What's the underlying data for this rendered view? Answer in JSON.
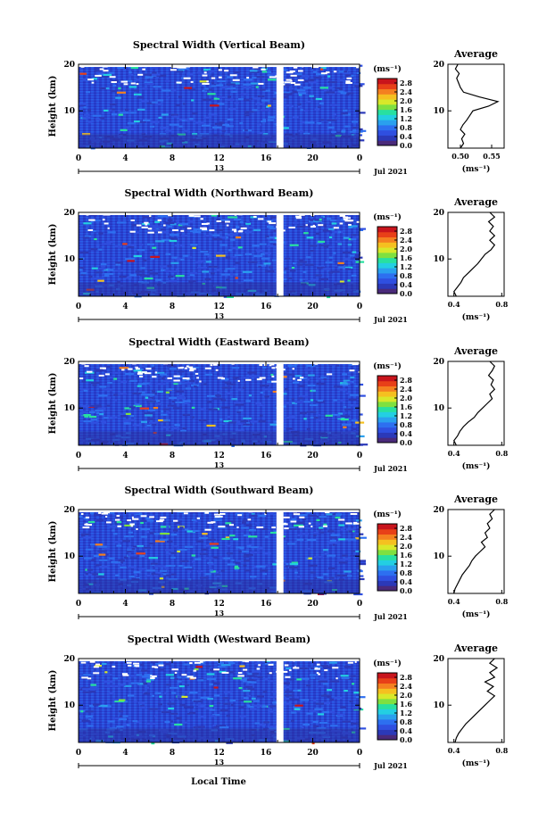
{
  "figure": {
    "xlabel": "Local Time",
    "date_label": "Jul 2021",
    "day_label": "13",
    "unit_label": "(ms⁻¹)",
    "avg_xlabel": "(ms⁻¹)",
    "avg_title": "Average",
    "ylabel": "Height (km)"
  },
  "colors": {
    "colormap": [
      "#4a2a7a",
      "#2b39b8",
      "#2f4fe0",
      "#2d6ff0",
      "#2aa0ee",
      "#23cfe2",
      "#28e0a0",
      "#7fe040",
      "#d8e82a",
      "#f5c020",
      "#f48020",
      "#e84018",
      "#c8141c"
    ],
    "gap": "#ffffff"
  },
  "chart_data": [
    {
      "type": "heatmap",
      "title": "Spectral Width (Vertical Beam)",
      "x_ticks": [
        "0",
        "4",
        "8",
        "12",
        "16",
        "20",
        "0"
      ],
      "y_ticks": [
        "20",
        "10"
      ],
      "xlim": [
        0,
        24
      ],
      "ylim": [
        2,
        20
      ],
      "colorbar": {
        "ticks": [
          "2.8",
          "2.4",
          "2.0",
          "1.6",
          "1.2",
          "0.8",
          "0.4",
          "0.0"
        ],
        "range": [
          0,
          3.0
        ]
      },
      "gap_hours": [
        16.9,
        17.5
      ],
      "average": {
        "ticks": [
          "0.50",
          "0.55"
        ],
        "xlim": [
          0.48,
          0.57
        ],
        "height": [
          2,
          3,
          4,
          5,
          6,
          7,
          8,
          9,
          10,
          11,
          12,
          13,
          14,
          15,
          16,
          17,
          18,
          19,
          20
        ],
        "value": [
          0.5,
          0.505,
          0.502,
          0.507,
          0.5,
          0.504,
          0.51,
          0.515,
          0.52,
          0.545,
          0.56,
          0.53,
          0.505,
          0.5,
          0.497,
          0.494,
          0.498,
          0.492,
          0.496
        ]
      }
    },
    {
      "type": "heatmap",
      "title": "Spectral Width (Northward Beam)",
      "x_ticks": [
        "0",
        "4",
        "8",
        "12",
        "16",
        "20",
        "0"
      ],
      "y_ticks": [
        "20",
        "10"
      ],
      "xlim": [
        0,
        24
      ],
      "ylim": [
        2,
        20
      ],
      "colorbar": {
        "ticks": [
          "2.8",
          "2.4",
          "2.0",
          "1.6",
          "1.2",
          "0.8",
          "0.4",
          "0.0"
        ],
        "range": [
          0,
          3.0
        ]
      },
      "gap_hours": [
        16.9,
        17.5
      ],
      "average": {
        "ticks": [
          "0.4",
          "0.8"
        ],
        "xlim": [
          0.35,
          0.82
        ],
        "height": [
          2,
          3,
          4,
          5,
          6,
          7,
          8,
          9,
          10,
          11,
          12,
          13,
          14,
          15,
          16,
          17,
          18,
          19,
          20
        ],
        "value": [
          0.42,
          0.4,
          0.43,
          0.46,
          0.48,
          0.52,
          0.56,
          0.6,
          0.63,
          0.66,
          0.71,
          0.74,
          0.7,
          0.74,
          0.7,
          0.73,
          0.69,
          0.74,
          0.7
        ]
      }
    },
    {
      "type": "heatmap",
      "title": "Spectral Width (Eastward Beam)",
      "x_ticks": [
        "0",
        "4",
        "8",
        "12",
        "16",
        "20",
        "0"
      ],
      "y_ticks": [
        "20",
        "10"
      ],
      "xlim": [
        0,
        24
      ],
      "ylim": [
        2,
        20
      ],
      "colorbar": {
        "ticks": [
          "2.8",
          "2.4",
          "2.0",
          "1.6",
          "1.2",
          "0.8",
          "0.4",
          "0.0"
        ],
        "range": [
          0,
          3.0
        ]
      },
      "gap_hours": [
        16.9,
        17.5
      ],
      "average": {
        "ticks": [
          "0.4",
          "0.8"
        ],
        "xlim": [
          0.35,
          0.82
        ],
        "height": [
          2,
          3,
          4,
          5,
          6,
          7,
          8,
          9,
          10,
          11,
          12,
          13,
          14,
          15,
          16,
          17,
          18,
          19,
          20
        ],
        "value": [
          0.42,
          0.4,
          0.43,
          0.45,
          0.48,
          0.52,
          0.57,
          0.6,
          0.64,
          0.68,
          0.72,
          0.7,
          0.74,
          0.71,
          0.73,
          0.69,
          0.72,
          0.74,
          0.7
        ]
      }
    },
    {
      "type": "heatmap",
      "title": "Spectral Width (Southward Beam)",
      "x_ticks": [
        "0",
        "4",
        "8",
        "12",
        "16",
        "20",
        "0"
      ],
      "y_ticks": [
        "20",
        "10"
      ],
      "xlim": [
        0,
        24
      ],
      "ylim": [
        2,
        20
      ],
      "colorbar": {
        "ticks": [
          "2.8",
          "2.4",
          "2.0",
          "1.6",
          "1.2",
          "0.8",
          "0.4",
          "0.0"
        ],
        "range": [
          0,
          3.0
        ]
      },
      "gap_hours": [
        16.9,
        17.5
      ],
      "average": {
        "ticks": [
          "0.4",
          "0.8"
        ],
        "xlim": [
          0.35,
          0.82
        ],
        "height": [
          2,
          3,
          4,
          5,
          6,
          7,
          8,
          9,
          10,
          11,
          12,
          13,
          14,
          15,
          16,
          17,
          18,
          19,
          20
        ],
        "value": [
          0.4,
          0.41,
          0.43,
          0.45,
          0.47,
          0.5,
          0.53,
          0.55,
          0.58,
          0.62,
          0.66,
          0.63,
          0.68,
          0.66,
          0.7,
          0.68,
          0.72,
          0.7,
          0.74
        ]
      }
    },
    {
      "type": "heatmap",
      "title": "Spectral Width (Westward Beam)",
      "x_ticks": [
        "0",
        "4",
        "8",
        "12",
        "16",
        "20",
        "0"
      ],
      "y_ticks": [
        "20",
        "10"
      ],
      "xlim": [
        0,
        24
      ],
      "ylim": [
        2,
        20
      ],
      "colorbar": {
        "ticks": [
          "2.8",
          "2.4",
          "2.0",
          "1.6",
          "1.2",
          "0.8",
          "0.4",
          "0.0"
        ],
        "range": [
          0,
          3.0
        ]
      },
      "gap_hours": [
        16.9,
        17.5
      ],
      "average": {
        "ticks": [
          "0.4",
          "0.8"
        ],
        "xlim": [
          0.35,
          0.82
        ],
        "height": [
          2,
          3,
          4,
          5,
          6,
          7,
          8,
          9,
          10,
          11,
          12,
          13,
          14,
          15,
          16,
          17,
          18,
          19,
          20
        ],
        "value": [
          0.41,
          0.42,
          0.44,
          0.47,
          0.5,
          0.54,
          0.58,
          0.62,
          0.66,
          0.7,
          0.74,
          0.68,
          0.73,
          0.66,
          0.74,
          0.7,
          0.76,
          0.7,
          0.74
        ]
      }
    }
  ]
}
